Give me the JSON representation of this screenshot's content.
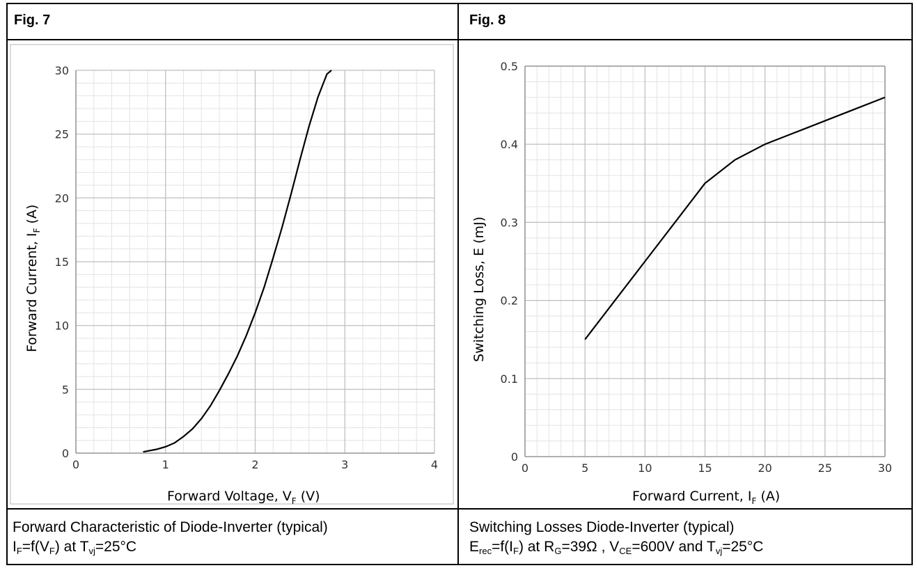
{
  "figures": [
    {
      "label": "Fig. 7",
      "caption_line1": "Forward Characteristic of Diode-Inverter (typical)",
      "caption_line2": {
        "a": "I",
        "a_sub": "F",
        "b": "=f(V",
        "b_sub": "F",
        "c": ") at T",
        "c_sub": "vj",
        "d": "=25°C"
      }
    },
    {
      "label": "Fig. 8",
      "caption_line1": "Switching Losses Diode-Inverter (typical)",
      "caption_line2": {
        "a": "E",
        "a_sub": "rec",
        "b": "=f(I",
        "b_sub": "F",
        "c": ")  at R",
        "c_sub": "G",
        "d": "=39Ω , V",
        "d_sub": "CE",
        "e": "=600V and T",
        "e_sub": "vj",
        "f": "=25°C"
      }
    }
  ],
  "chart_data": [
    {
      "type": "line",
      "title": "",
      "xlabel": {
        "text": "Forward Voltage, V",
        "sub": "F",
        "unit": " (V)"
      },
      "ylabel": {
        "text": "Forward Current, I",
        "sub": "F",
        "unit": " (A)"
      },
      "xlim": [
        0,
        4
      ],
      "ylim": [
        0,
        30
      ],
      "xticks": [
        0,
        1,
        2,
        3,
        4
      ],
      "yticks": [
        0,
        5,
        10,
        15,
        20,
        25,
        30
      ],
      "grid": true,
      "series": [
        {
          "x": [
            0.75,
            0.9,
            1.0,
            1.1,
            1.2,
            1.3,
            1.4,
            1.5,
            1.6,
            1.7,
            1.8,
            1.9,
            2.0,
            2.1,
            2.2,
            2.3,
            2.4,
            2.5,
            2.6,
            2.7,
            2.8,
            2.85
          ],
          "y": [
            0.1,
            0.3,
            0.5,
            0.8,
            1.3,
            1.9,
            2.7,
            3.7,
            4.9,
            6.2,
            7.6,
            9.2,
            11.0,
            13.0,
            15.3,
            17.7,
            20.3,
            23.0,
            25.6,
            27.9,
            29.7,
            30.0
          ]
        }
      ]
    },
    {
      "type": "line",
      "title": "",
      "xlabel": {
        "text": "Forward Current, I",
        "sub": "F",
        "unit": " (A)"
      },
      "ylabel": {
        "text": "Switching Loss, E (mJ)",
        "sub": "",
        "unit": ""
      },
      "xlim": [
        0,
        30
      ],
      "ylim": [
        0,
        0.5
      ],
      "xticks": [
        0,
        5,
        10,
        15,
        20,
        25,
        30
      ],
      "yticks": [
        0,
        0.1,
        0.2,
        0.3,
        0.4,
        0.5
      ],
      "grid": true,
      "series": [
        {
          "x": [
            5,
            7.5,
            10,
            12.5,
            15,
            17.5,
            20,
            22.5,
            25,
            27.5,
            30
          ],
          "y": [
            0.15,
            0.2,
            0.25,
            0.3,
            0.35,
            0.38,
            0.4,
            0.415,
            0.43,
            0.445,
            0.46
          ]
        }
      ]
    }
  ]
}
